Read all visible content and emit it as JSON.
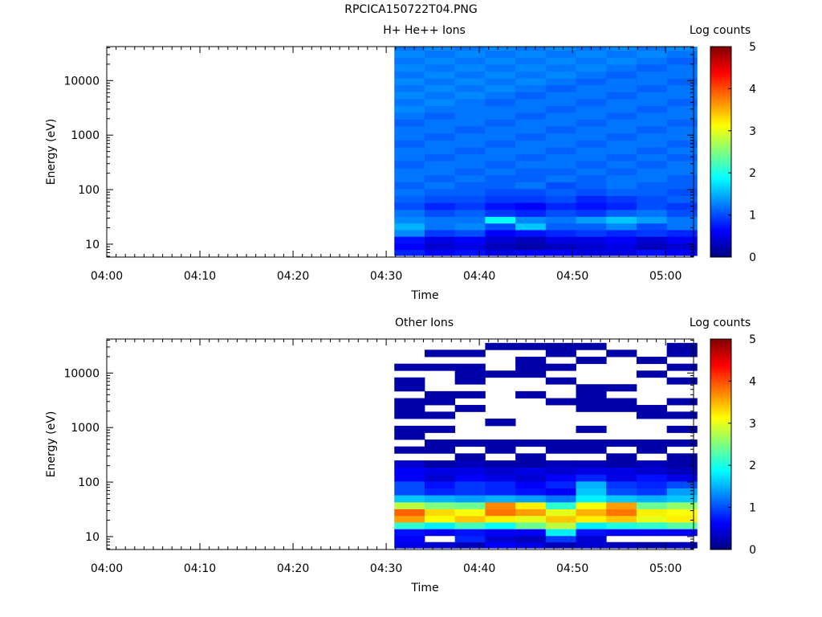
{
  "page": {
    "title": "RPCICA150722T04.PNG"
  },
  "colormap": [
    "#00007f",
    "#0000ff",
    "#007fff",
    "#00ffff",
    "#7fff7f",
    "#ffff00",
    "#ff7f00",
    "#ff0000",
    "#7f0000"
  ],
  "chart_data": [
    {
      "type": "heatmap",
      "title": "H+ He++ Ions",
      "xlabel": "Time",
      "ylabel": "Energy (eV)",
      "x_ticks": [
        "04:00",
        "04:10",
        "04:20",
        "04:30",
        "04:40",
        "04:50",
        "05:00"
      ],
      "x_range": [
        "04:00",
        "05:03"
      ],
      "y_scale": "log",
      "y_ticks": [
        10,
        100,
        1000,
        10000
      ],
      "y_range": [
        5.8,
        42000
      ],
      "colorbar": {
        "label": "Log counts",
        "range": [
          0,
          5
        ],
        "ticks": [
          0,
          1,
          2,
          3,
          4,
          5
        ]
      },
      "time_bins": [
        "04:32:30",
        "04:35:45",
        "04:39:00",
        "04:42:15",
        "04:45:30",
        "04:48:45",
        "04:52:00",
        "04:55:15",
        "04:58:30",
        "05:01:45"
      ],
      "energy_bins_eV": [
        7,
        9,
        12,
        16,
        21,
        28,
        37,
        50,
        67,
        90,
        120,
        160,
        215,
        290,
        390,
        520,
        700,
        930,
        1250,
        1700,
        2250,
        3000,
        4000,
        5400,
        7200,
        9600,
        12800,
        17200,
        23000,
        31000,
        41000
      ],
      "values": [
        [
          0.8,
          0.6,
          0.7,
          0.5,
          0.6,
          0.6,
          0.5,
          0.5,
          0.7,
          0.6
        ],
        [
          0.6,
          0.4,
          0.5,
          0.3,
          0.2,
          0.3,
          0.4,
          0.5,
          0.3,
          0.4
        ],
        [
          0.7,
          0.5,
          0.6,
          0.4,
          0.3,
          0.5,
          0.5,
          0.6,
          0.4,
          0.6
        ],
        [
          1.3,
          0.9,
          1.0,
          0.6,
          0.7,
          0.8,
          0.9,
          0.8,
          0.9,
          0.8
        ],
        [
          1.5,
          1.2,
          1.3,
          1.0,
          1.6,
          1.1,
          1.1,
          1.3,
          1.0,
          1.2
        ],
        [
          1.3,
          1.2,
          1.2,
          1.9,
          1.3,
          1.2,
          1.4,
          1.6,
          1.4,
          1.2
        ],
        [
          1.2,
          1.0,
          1.1,
          0.9,
          0.8,
          1.0,
          0.9,
          1.1,
          1.2,
          1.0
        ],
        [
          1.0,
          0.8,
          0.9,
          0.7,
          0.6,
          0.8,
          0.7,
          0.8,
          1.0,
          0.9
        ],
        [
          1.1,
          1.0,
          1.0,
          0.9,
          0.9,
          1.0,
          0.8,
          0.9,
          1.0,
          1.1
        ],
        [
          1.2,
          1.1,
          1.1,
          1.0,
          1.0,
          1.1,
          1.0,
          1.1,
          1.1,
          1.0
        ],
        [
          1.1,
          1.2,
          1.1,
          1.1,
          1.2,
          1.0,
          1.1,
          1.2,
          1.1,
          1.1
        ],
        [
          1.2,
          1.1,
          1.2,
          1.1,
          1.1,
          1.2,
          1.1,
          1.2,
          1.2,
          1.1
        ],
        [
          1.2,
          1.2,
          1.1,
          1.2,
          1.1,
          1.1,
          1.2,
          1.1,
          1.2,
          1.2
        ],
        [
          1.1,
          1.2,
          1.2,
          1.1,
          1.2,
          1.2,
          1.1,
          1.2,
          1.1,
          1.2
        ],
        [
          1.2,
          1.1,
          1.2,
          1.2,
          1.1,
          1.2,
          1.2,
          1.1,
          1.2,
          1.1
        ],
        [
          1.2,
          1.2,
          1.1,
          1.2,
          1.2,
          1.1,
          1.2,
          1.2,
          1.1,
          1.2
        ],
        [
          1.1,
          1.2,
          1.2,
          1.1,
          1.2,
          1.2,
          1.1,
          1.2,
          1.2,
          1.1
        ],
        [
          1.2,
          1.1,
          1.2,
          1.2,
          1.1,
          1.2,
          1.2,
          1.1,
          1.2,
          1.2
        ],
        [
          1.2,
          1.2,
          1.1,
          1.2,
          1.2,
          1.1,
          1.2,
          1.2,
          1.1,
          1.2
        ],
        [
          1.1,
          1.2,
          1.2,
          1.1,
          1.2,
          1.2,
          1.1,
          1.2,
          1.2,
          1.1
        ],
        [
          1.2,
          1.1,
          1.2,
          1.2,
          1.1,
          1.2,
          1.2,
          1.1,
          1.2,
          1.2
        ],
        [
          1.3,
          1.2,
          1.2,
          1.2,
          1.2,
          1.1,
          1.2,
          1.2,
          1.1,
          1.2
        ],
        [
          1.2,
          1.3,
          1.2,
          1.1,
          1.2,
          1.2,
          1.1,
          1.2,
          1.2,
          1.1
        ],
        [
          1.3,
          1.2,
          1.3,
          1.2,
          1.1,
          1.2,
          1.2,
          1.1,
          1.2,
          1.2
        ],
        [
          1.2,
          1.3,
          1.2,
          1.3,
          1.2,
          1.1,
          1.2,
          1.2,
          1.1,
          1.2
        ],
        [
          1.3,
          1.2,
          1.3,
          1.2,
          1.3,
          1.2,
          1.1,
          1.2,
          1.2,
          1.1
        ],
        [
          1.2,
          1.3,
          1.2,
          1.3,
          1.2,
          1.3,
          1.2,
          1.1,
          1.2,
          1.2
        ],
        [
          1.3,
          1.2,
          1.3,
          1.2,
          1.3,
          1.2,
          1.3,
          1.2,
          1.1,
          1.2
        ],
        [
          1.2,
          1.3,
          1.2,
          1.3,
          1.2,
          1.3,
          1.2,
          1.3,
          1.2,
          1.1
        ],
        [
          1.3,
          1.2,
          1.3,
          1.2,
          1.3,
          1.2,
          1.3,
          1.2,
          1.3,
          1.2
        ],
        [
          1.2,
          1.3,
          1.2,
          1.3,
          1.2,
          1.3,
          1.2,
          1.3,
          1.2,
          1.3
        ]
      ]
    },
    {
      "type": "heatmap",
      "title": "Other Ions",
      "xlabel": "Time",
      "ylabel": "Energy (eV)",
      "x_ticks": [
        "04:00",
        "04:10",
        "04:20",
        "04:30",
        "04:40",
        "04:50",
        "05:00"
      ],
      "x_range": [
        "04:00",
        "05:03"
      ],
      "y_scale": "log",
      "y_ticks": [
        10,
        100,
        1000,
        10000
      ],
      "y_range": [
        5.8,
        42000
      ],
      "colorbar": {
        "label": "Log counts",
        "range": [
          0,
          5
        ],
        "ticks": [
          0,
          1,
          2,
          3,
          4,
          5
        ]
      },
      "time_bins": [
        "04:32:30",
        "04:35:45",
        "04:39:00",
        "04:42:15",
        "04:45:30",
        "04:48:45",
        "04:52:00",
        "04:55:15",
        "04:58:30",
        "05:01:45"
      ],
      "energy_bins_eV": [
        7,
        9,
        12,
        16,
        21,
        28,
        37,
        50,
        67,
        90,
        120,
        160,
        215,
        290,
        390,
        520,
        700,
        930,
        1250,
        1700,
        2250,
        3000,
        4000,
        5400,
        7200,
        9600,
        12800,
        17200,
        23000,
        31000,
        41000
      ],
      "values": [
        [
          0.5,
          0.4,
          0.3,
          0.6,
          0.5,
          0.3,
          0.4,
          0.3,
          0.2,
          0.3
        ],
        [
          0.6,
          null,
          0.8,
          0.4,
          0.3,
          0.9,
          0.4,
          null,
          null,
          null
        ],
        [
          0.7,
          0.6,
          0.7,
          0.6,
          0.6,
          1.8,
          0.7,
          0.6,
          0.6,
          0.6
        ],
        [
          2.1,
          1.8,
          2.2,
          1.9,
          2.4,
          2.8,
          1.8,
          2.0,
          2.1,
          2.3
        ],
        [
          3.6,
          3.1,
          3.4,
          3.2,
          3.0,
          3.4,
          3.2,
          3.4,
          3.0,
          3.2
        ],
        [
          3.9,
          3.3,
          3.1,
          3.8,
          3.6,
          3.0,
          3.5,
          3.8,
          3.2,
          3.1
        ],
        [
          2.8,
          2.5,
          2.4,
          3.7,
          3.2,
          2.1,
          3.1,
          3.6,
          2.4,
          2.6
        ],
        [
          1.6,
          1.5,
          1.4,
          1.5,
          1.4,
          1.2,
          1.8,
          1.6,
          1.5,
          1.6
        ],
        [
          1.0,
          0.8,
          0.9,
          0.8,
          0.7,
          0.6,
          1.6,
          1.0,
          0.9,
          1.4
        ],
        [
          1.0,
          0.7,
          0.9,
          0.8,
          0.6,
          0.8,
          1.5,
          0.9,
          0.8,
          1.0
        ],
        [
          0.6,
          0.4,
          0.6,
          0.5,
          0.4,
          0.6,
          0.8,
          0.5,
          0.7,
          0.5
        ],
        [
          0.6,
          0.5,
          0.5,
          0.4,
          0.5,
          0.4,
          0.5,
          0.5,
          0.4,
          0.3
        ],
        [
          0.4,
          0.2,
          0.3,
          0.2,
          0.2,
          0.3,
          0.3,
          0.2,
          0.3,
          0.2
        ],
        [
          null,
          null,
          0.2,
          null,
          0.2,
          null,
          null,
          0.2,
          null,
          0.2
        ],
        [
          0.2,
          0.2,
          null,
          0.2,
          null,
          0.2,
          0.2,
          null,
          0.2,
          null
        ],
        [
          null,
          0.2,
          0.2,
          0.2,
          0.2,
          0.2,
          0.2,
          0.2,
          0.2,
          0.2
        ],
        [
          0.2,
          null,
          null,
          null,
          null,
          null,
          null,
          null,
          null,
          null
        ],
        [
          0.2,
          0.2,
          null,
          null,
          null,
          null,
          0.2,
          null,
          null,
          0.2
        ],
        [
          null,
          null,
          null,
          0.2,
          null,
          null,
          null,
          null,
          null,
          null
        ],
        [
          0.2,
          0.2,
          null,
          null,
          null,
          null,
          null,
          null,
          0.2,
          0.2
        ],
        [
          0.2,
          null,
          0.2,
          null,
          null,
          null,
          0.2,
          0.2,
          0.2,
          null
        ],
        [
          0.2,
          0.2,
          null,
          null,
          null,
          0.2,
          0.2,
          0.2,
          null,
          0.2
        ],
        [
          null,
          0.2,
          0.2,
          null,
          0.2,
          null,
          0.2,
          null,
          null,
          null
        ],
        [
          0.2,
          null,
          null,
          null,
          null,
          null,
          0.2,
          0.2,
          null,
          null
        ],
        [
          0.2,
          null,
          0.2,
          null,
          null,
          0.2,
          null,
          null,
          null,
          0.2
        ],
        [
          null,
          null,
          0.2,
          0.2,
          0.2,
          null,
          null,
          null,
          0.2,
          null
        ],
        [
          0.2,
          0.2,
          0.2,
          null,
          0.2,
          0.2,
          null,
          null,
          null,
          0.2
        ],
        [
          null,
          null,
          null,
          null,
          0.2,
          null,
          0.2,
          null,
          0.2,
          null
        ],
        [
          null,
          0.2,
          0.2,
          null,
          null,
          0.2,
          null,
          0.2,
          null,
          0.2
        ],
        [
          null,
          null,
          null,
          0.2,
          0.2,
          0.2,
          0.2,
          null,
          null,
          0.2
        ],
        [
          null,
          null,
          null,
          null,
          null,
          null,
          null,
          null,
          null,
          null
        ]
      ]
    }
  ]
}
